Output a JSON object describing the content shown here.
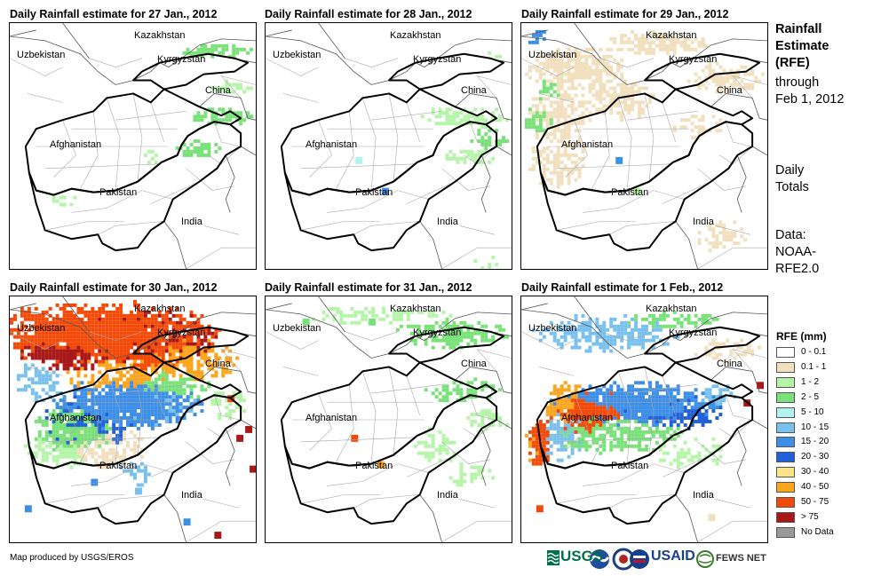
{
  "panels": [
    {
      "title": "Daily Rainfall estimate for 27 Jan., 2012"
    },
    {
      "title": "Daily Rainfall estimate for 28 Jan., 2012"
    },
    {
      "title": "Daily Rainfall estimate for 29 Jan., 2012"
    },
    {
      "title": "Daily Rainfall estimate for 30 Jan., 2012"
    },
    {
      "title": "Daily Rainfall estimate for 31 Jan., 2012"
    },
    {
      "title": "Daily Rainfall estimate for 1 Feb., 2012"
    }
  ],
  "countries": {
    "kazakhstan": "Kazakhstan",
    "uzbekistan": "Uzbekistan",
    "kyrgyzstan": "Kyrgyzstan",
    "china": "China",
    "afghanistan": "Afghanistan",
    "pakistan": "Pakistan",
    "india": "India"
  },
  "side": {
    "title_line1": "Rainfall",
    "title_line2": "Estimate",
    "title_line3": "(RFE)",
    "title_line4": "through",
    "title_line5": "Feb 1, 2012",
    "daily_line1": "Daily",
    "daily_line2": "Totals",
    "data_line1": "Data:",
    "data_line2": "NOAA-",
    "data_line3": "RFE2.0"
  },
  "legend": {
    "title": "RFE (mm)",
    "items": [
      {
        "label": "0 - 0.1",
        "color": "#ffffff"
      },
      {
        "label": "0.1 - 1",
        "color": "#f1dfbd"
      },
      {
        "label": "1 - 2",
        "color": "#b4f5a8"
      },
      {
        "label": "2 - 5",
        "color": "#78e278"
      },
      {
        "label": "5 - 10",
        "color": "#b4f2f2"
      },
      {
        "label": "10 - 15",
        "color": "#78c0ee"
      },
      {
        "label": "15 - 20",
        "color": "#3c8ee6"
      },
      {
        "label": "20 - 30",
        "color": "#2060d8"
      },
      {
        "label": "30 - 40",
        "color": "#fce486"
      },
      {
        "label": "40 - 50",
        "color": "#fca41c"
      },
      {
        "label": "50 - 75",
        "color": "#f44a08"
      },
      {
        "label": "> 75",
        "color": "#a81818"
      },
      {
        "label": "No Data",
        "color": "#999999"
      }
    ]
  },
  "footer": {
    "credit": "Map produced by USGS/EROS"
  },
  "logos": {
    "usgs": "USGS",
    "usaid": "USAID",
    "fewsnet": "FEWS NET"
  }
}
